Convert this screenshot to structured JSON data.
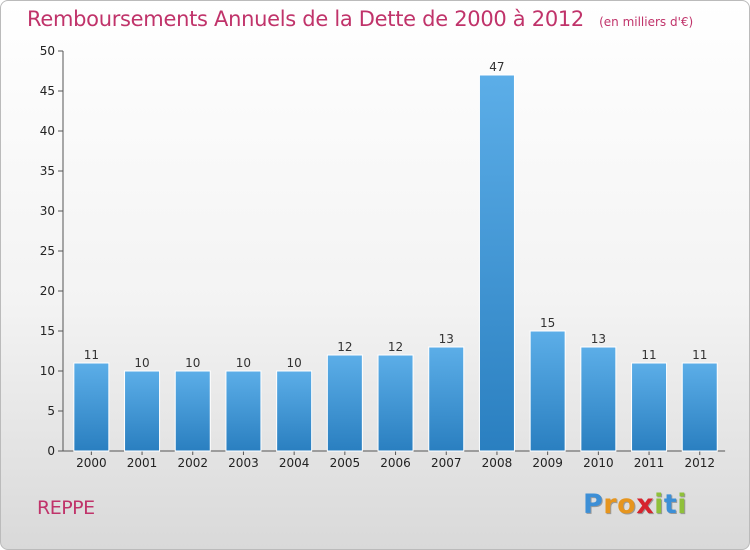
{
  "chart_data": {
    "type": "bar",
    "title": "Remboursements Annuels de la Dette de 2000 à 2012",
    "subtitle": "(en milliers d'€)",
    "categories": [
      "2000",
      "2001",
      "2002",
      "2003",
      "2004",
      "2005",
      "2006",
      "2007",
      "2008",
      "2009",
      "2010",
      "2011",
      "2012"
    ],
    "values": [
      11,
      10,
      10,
      10,
      10,
      12,
      12,
      13,
      47,
      15,
      13,
      11,
      11
    ],
    "data_labels": [
      "11",
      "10",
      "10",
      "10",
      "10",
      "12",
      "12",
      "13",
      "47",
      "15",
      "13",
      "11",
      "11"
    ],
    "y_ticks": [
      "0",
      "5",
      "10",
      "15",
      "20",
      "25",
      "30",
      "35",
      "40",
      "45",
      "50"
    ],
    "xlabel": "",
    "ylabel": "",
    "ylim": [
      0,
      50
    ],
    "grid": false,
    "bar_color_top": "#5caee8",
    "bar_color_bottom": "#2a7fc0"
  },
  "footer": {
    "place": "REPPE",
    "logo_letters": [
      {
        "ch": "P",
        "color": "#3d8fd6"
      },
      {
        "ch": "r",
        "color": "#e6951e"
      },
      {
        "ch": "o",
        "color": "#e6951e"
      },
      {
        "ch": "x",
        "color": "#d6242e"
      },
      {
        "ch": "i",
        "color": "#8fc03a"
      },
      {
        "ch": "t",
        "color": "#3d8fd6"
      },
      {
        "ch": "i",
        "color": "#8fc03a"
      }
    ]
  }
}
